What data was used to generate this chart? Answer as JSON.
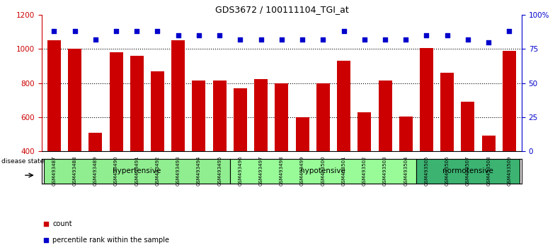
{
  "title": "GDS3672 / 100111104_TGI_at",
  "samples": [
    "GSM493487",
    "GSM493488",
    "GSM493489",
    "GSM493490",
    "GSM493491",
    "GSM493492",
    "GSM493493",
    "GSM493494",
    "GSM493495",
    "GSM493496",
    "GSM493497",
    "GSM493498",
    "GSM493499",
    "GSM493500",
    "GSM493501",
    "GSM493502",
    "GSM493503",
    "GSM493504",
    "GSM493505",
    "GSM493506",
    "GSM493507",
    "GSM493508",
    "GSM493509"
  ],
  "counts": [
    1050,
    1000,
    510,
    980,
    960,
    870,
    1050,
    815,
    815,
    770,
    825,
    800,
    600,
    800,
    930,
    630,
    815,
    605,
    1005,
    860,
    690,
    490,
    990
  ],
  "percentile_ranks": [
    88,
    88,
    82,
    88,
    88,
    88,
    85,
    85,
    85,
    82,
    82,
    82,
    82,
    82,
    88,
    82,
    82,
    82,
    85,
    85,
    82,
    80,
    88
  ],
  "groups": [
    {
      "name": "hypertensive",
      "start": 0,
      "end": 8,
      "color": "#90EE90"
    },
    {
      "name": "hypotensive",
      "start": 9,
      "end": 17,
      "color": "#98FB98"
    },
    {
      "name": "normotensive",
      "start": 18,
      "end": 22,
      "color": "#3CB371"
    }
  ],
  "bar_color": "#CC0000",
  "dot_color": "#0000CC",
  "ylim_left": [
    400,
    1200
  ],
  "ylim_right": [
    0,
    100
  ],
  "yticks_left": [
    400,
    600,
    800,
    1000,
    1200
  ],
  "yticks_right": [
    0,
    25,
    50,
    75,
    100
  ],
  "legend_count_label": "count",
  "legend_percentile_label": "percentile rank within the sample",
  "disease_state_label": "disease state"
}
